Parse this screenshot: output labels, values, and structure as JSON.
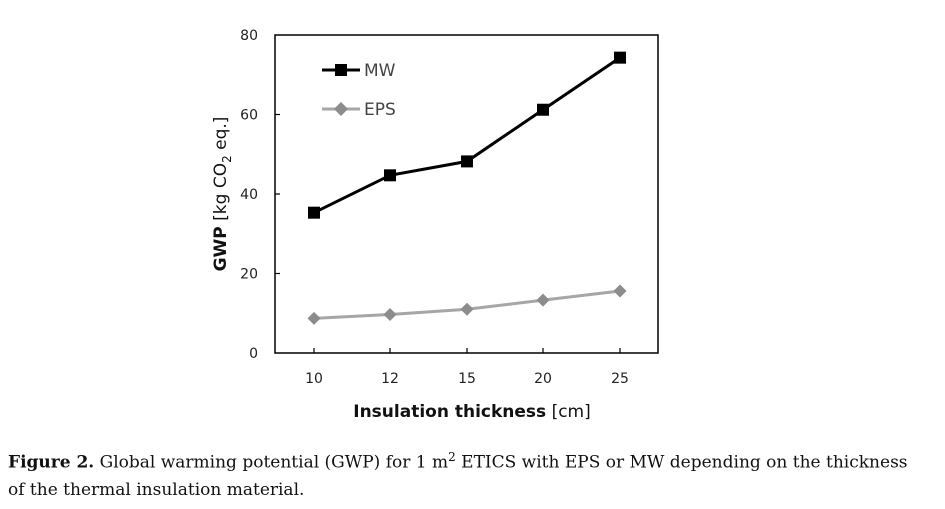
{
  "chart_data": {
    "type": "line",
    "categories": [
      "10",
      "12",
      "15",
      "20",
      "25"
    ],
    "series": [
      {
        "name": "MW",
        "values": [
          35.3,
          44.7,
          48.2,
          61.2,
          74.3
        ],
        "color": "#000000",
        "marker": "square"
      },
      {
        "name": "EPS",
        "values": [
          8.7,
          9.7,
          11.0,
          13.3,
          15.6
        ],
        "color": "#a6a6a6",
        "marker": "diamond"
      }
    ],
    "ylim": [
      0,
      80
    ],
    "yticks": [
      0,
      20,
      40,
      60,
      80
    ],
    "xlabel": {
      "bold": "Insulation thickness",
      "rest": " [cm]"
    },
    "ylabel": {
      "bold": "GWP",
      "part1": " [kg CO",
      "sub": "2",
      "part2": " eq.]"
    },
    "legend_position": "top-left"
  },
  "caption": {
    "label": "Figure 2.",
    "text_before_sup": " Global warming potential (GWP) for 1 m",
    "sup": "2",
    "text_after_sup": " ETICS with EPS or MW depending on the thickness of the thermal insulation material."
  }
}
